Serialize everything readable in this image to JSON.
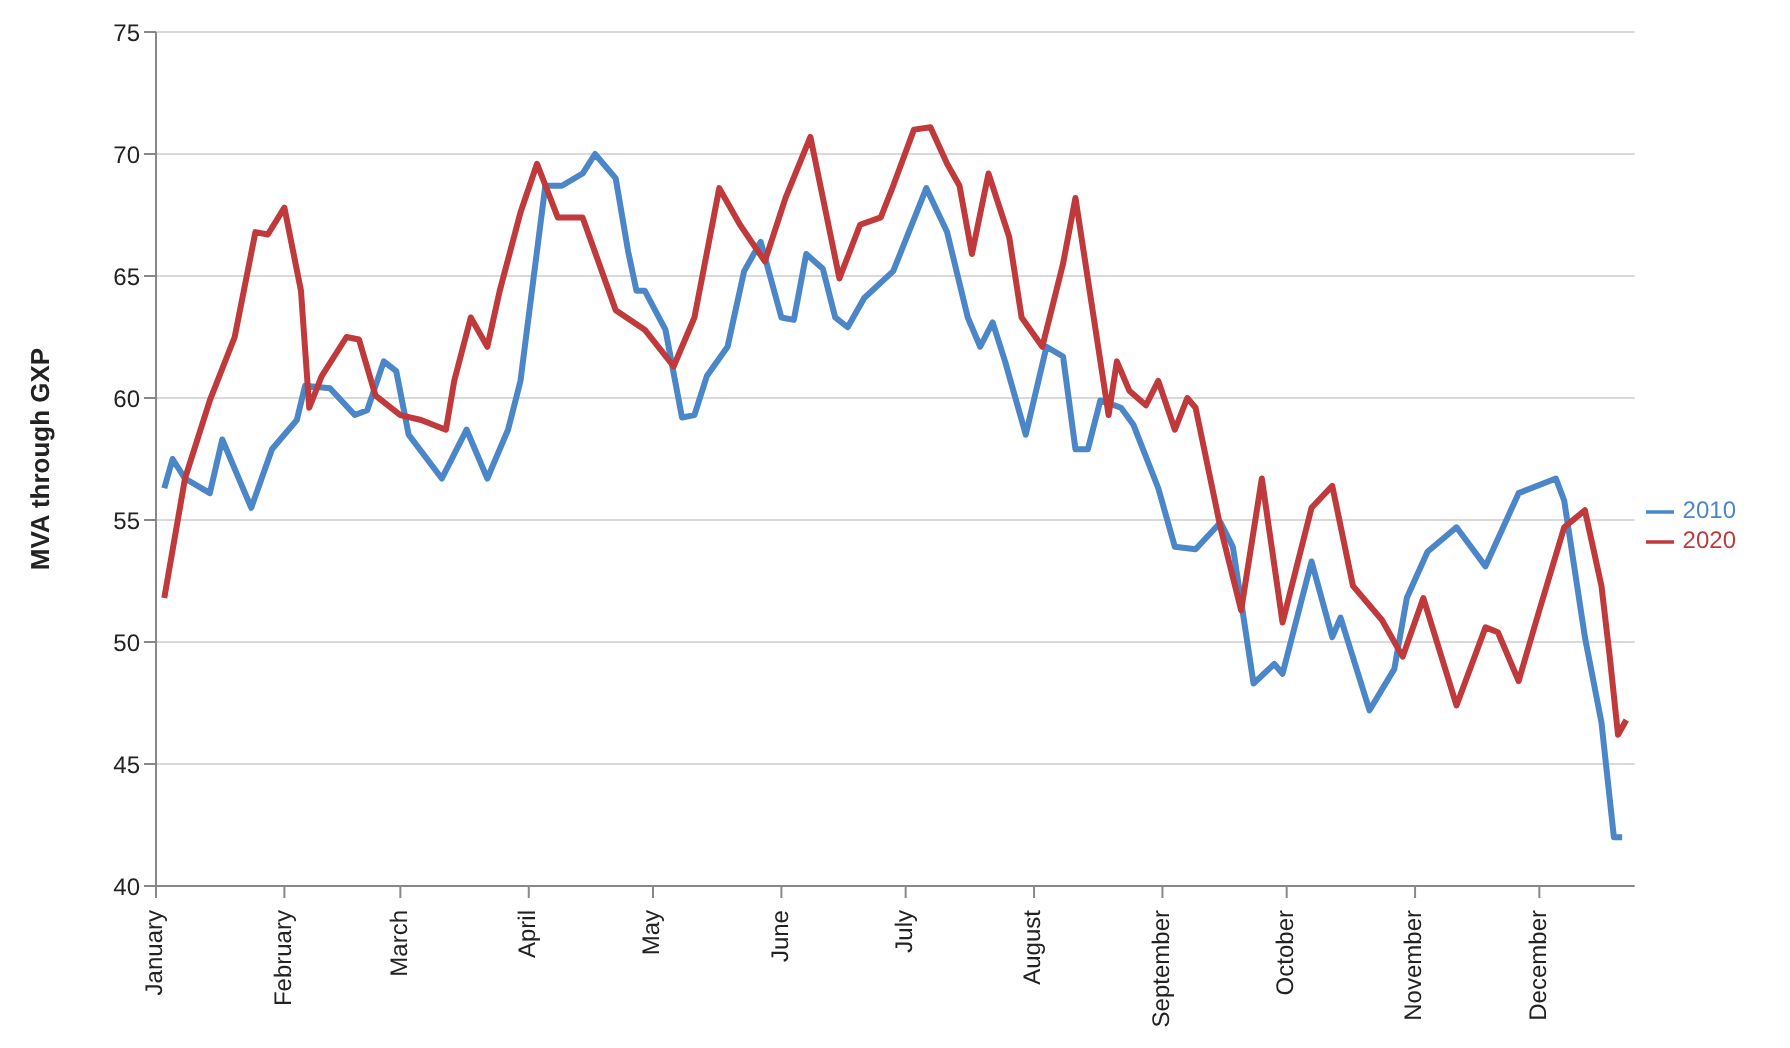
{
  "chart_data": {
    "type": "line",
    "ylabel": "MVA through GXP",
    "xlim": [
      "--01-01",
      "--12-24"
    ],
    "xticks": [
      {
        "value": "--01-01",
        "label": "January"
      },
      {
        "value": "--02-01",
        "label": "February"
      },
      {
        "value": "--03-01",
        "label": "March"
      },
      {
        "value": "--04-01",
        "label": "April"
      },
      {
        "value": "--05-01",
        "label": "May"
      },
      {
        "value": "--06-01",
        "label": "June"
      },
      {
        "value": "--07-01",
        "label": "July"
      },
      {
        "value": "--08-01",
        "label": "August"
      },
      {
        "value": "--09-01",
        "label": "September"
      },
      {
        "value": "--10-01",
        "label": "October"
      },
      {
        "value": "--11-01",
        "label": "November"
      },
      {
        "value": "--12-01",
        "label": "December"
      }
    ],
    "ylim": [
      40,
      75
    ],
    "yticks": [
      40,
      45,
      50,
      55,
      60,
      65,
      70,
      75
    ],
    "grid": "y",
    "legend": "right",
    "marker": "none",
    "line_style": "solid",
    "series": [
      {
        "name": "2010",
        "color": "#4a86c8",
        "x": [
          "--01-03",
          "--01-05",
          "--01-08",
          "--01-14",
          "--01-17",
          "--01-24",
          "--01-29",
          "--02-04",
          "--02-06",
          "--02-12",
          "--02-18",
          "--02-21",
          "--02-25",
          "--02-28",
          "--03-03",
          "--03-11",
          "--03-17",
          "--03-22",
          "--03-27",
          "--03-30",
          "--04-05",
          "--04-09",
          "--04-14",
          "--04-17",
          "--04-22",
          "--04-25",
          "--04-27",
          "--04-29",
          "--05-04",
          "--05-08",
          "--05-11",
          "--05-14",
          "--05-19",
          "--05-23",
          "--05-27",
          "--06-01",
          "--06-04",
          "--06-07",
          "--06-11",
          "--06-14",
          "--06-17",
          "--06-21",
          "--06-28",
          "--07-06",
          "--07-11",
          "--07-16",
          "--07-19",
          "--07-22",
          "--07-25",
          "--07-30",
          "--08-04",
          "--08-08",
          "--08-11",
          "--08-14",
          "--08-17",
          "--08-22",
          "--08-25",
          "--08-31",
          "--09-04",
          "--09-09",
          "--09-15",
          "--09-18",
          "--09-23",
          "--09-28",
          "--09-30",
          "--10-07",
          "--10-12",
          "--10-14",
          "--10-21",
          "--10-27",
          "--10-30",
          "--11-04",
          "--11-11",
          "--11-18",
          "--11-26",
          "--12-05",
          "--12-07",
          "--12-12",
          "--12-16",
          "--12-19",
          "--12-21"
        ],
        "values": [
          56.3,
          57.5,
          56.7,
          56.1,
          58.3,
          55.5,
          57.9,
          59.1,
          60.5,
          60.4,
          59.3,
          59.5,
          61.5,
          61.1,
          58.5,
          56.7,
          58.7,
          56.7,
          58.7,
          60.7,
          68.7,
          68.7,
          69.2,
          70.0,
          69.0,
          66.0,
          64.4,
          64.4,
          62.8,
          59.2,
          59.3,
          60.9,
          62.1,
          65.2,
          66.4,
          63.3,
          63.2,
          65.9,
          65.3,
          63.3,
          62.9,
          64.1,
          65.2,
          68.6,
          66.8,
          63.3,
          62.1,
          63.1,
          61.5,
          58.5,
          62.1,
          61.7,
          57.9,
          57.9,
          59.9,
          59.6,
          58.9,
          56.3,
          53.9,
          53.8,
          54.9,
          53.9,
          48.3,
          49.1,
          48.7,
          53.3,
          50.2,
          51.0,
          47.2,
          48.9,
          51.8,
          53.7,
          54.7,
          53.1,
          56.1,
          56.7,
          55.8,
          50.2,
          46.7,
          42.0,
          42.0
        ]
      },
      {
        "name": "2020",
        "color": "#c0393b",
        "x": [
          "--01-03",
          "--01-08",
          "--01-14",
          "--01-20",
          "--01-25",
          "--01-28",
          "--02-01",
          "--02-05",
          "--02-07",
          "--02-10",
          "--02-16",
          "--02-19",
          "--02-23",
          "--03-01",
          "--03-06",
          "--03-12",
          "--03-14",
          "--03-18",
          "--03-22",
          "--03-25",
          "--03-30",
          "--04-03",
          "--04-08",
          "--04-14",
          "--04-22",
          "--04-29",
          "--05-06",
          "--05-11",
          "--05-17",
          "--05-22",
          "--05-28",
          "--06-02",
          "--06-08",
          "--06-15",
          "--06-20",
          "--06-25",
          "--06-28",
          "--07-03",
          "--07-07",
          "--07-11",
          "--07-14",
          "--07-17",
          "--07-21",
          "--07-26",
          "--07-29",
          "--08-03",
          "--08-08",
          "--08-11",
          "--08-19",
          "--08-21",
          "--08-24",
          "--08-28",
          "--08-31",
          "--09-04",
          "--09-07",
          "--09-09",
          "--09-15",
          "--09-20",
          "--09-25",
          "--09-30",
          "--10-07",
          "--10-12",
          "--10-17",
          "--10-24",
          "--10-29",
          "--11-03",
          "--11-11",
          "--11-18",
          "--11-21",
          "--11-26",
          "--12-01",
          "--12-07",
          "--12-12",
          "--12-16",
          "--12-18",
          "--12-20",
          "--12-22"
        ],
        "values": [
          51.8,
          56.7,
          59.9,
          62.5,
          66.8,
          66.7,
          67.8,
          64.4,
          59.6,
          60.9,
          62.5,
          62.4,
          60.1,
          59.3,
          59.1,
          58.7,
          60.7,
          63.3,
          62.1,
          64.4,
          67.6,
          69.6,
          67.4,
          67.4,
          63.6,
          62.8,
          61.3,
          63.3,
          68.6,
          67.1,
          65.6,
          68.2,
          70.7,
          64.9,
          67.1,
          67.4,
          68.7,
          71.0,
          71.1,
          69.6,
          68.7,
          65.9,
          69.2,
          66.6,
          63.3,
          62.1,
          65.5,
          68.2,
          59.3,
          61.5,
          60.3,
          59.7,
          60.7,
          58.7,
          60.0,
          59.6,
          54.7,
          51.3,
          56.7,
          50.8,
          55.5,
          56.4,
          52.3,
          50.9,
          49.4,
          51.8,
          47.4,
          50.6,
          50.4,
          48.4,
          51.3,
          54.7,
          55.4,
          52.3,
          49.4,
          46.2,
          46.8
        ]
      }
    ]
  }
}
